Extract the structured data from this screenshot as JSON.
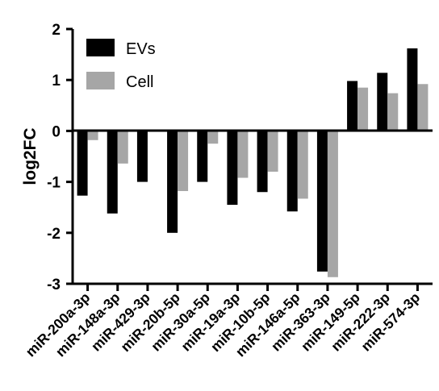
{
  "chart_data": {
    "type": "bar",
    "title": "",
    "xlabel": "",
    "ylabel": "log2FC",
    "ylim": [
      -3,
      2
    ],
    "yticks": [
      2,
      1,
      0,
      -1,
      -2,
      -3
    ],
    "grid": false,
    "legend_position": "top-left",
    "categories": [
      "miR-200a-3p",
      "miR-148a-3p",
      "miR-429-3p",
      "miR-20b-5p",
      "miR-30a-5p",
      "miR-19a-3p",
      "miR-10b-5p",
      "miR-146a-5p",
      "miR-363-3p",
      "miR-149-5p",
      "miR-222-3p",
      "miR-574-3p"
    ],
    "series": [
      {
        "name": "EVs",
        "color": "#000000",
        "values": [
          -1.27,
          -1.62,
          -1.0,
          -2.0,
          -1.0,
          -1.45,
          -1.2,
          -1.58,
          -2.76,
          0.98,
          1.14,
          1.62
        ]
      },
      {
        "name": "Cell",
        "color": "#a6a6a6",
        "values": [
          -0.18,
          -0.64,
          null,
          -1.18,
          -0.25,
          -0.92,
          -0.8,
          -1.33,
          -2.87,
          0.85,
          0.74,
          0.92
        ]
      }
    ]
  }
}
